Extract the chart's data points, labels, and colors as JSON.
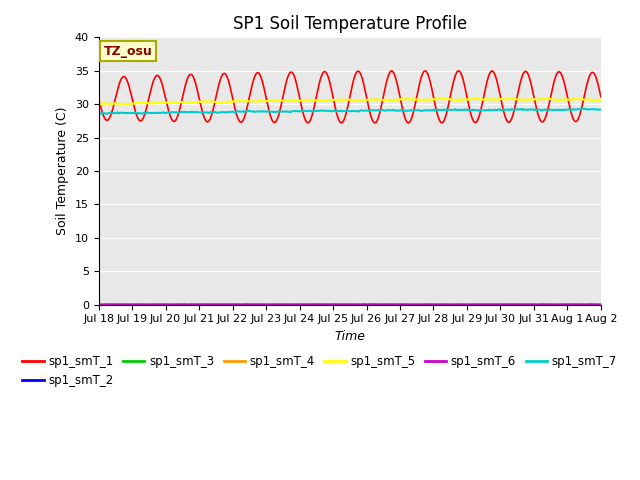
{
  "title": "SP1 Soil Temperature Profile",
  "xlabel": "Time",
  "ylabel": "Soil Temperature (C)",
  "annotation": "TZ_osu",
  "ylim": [
    0,
    40
  ],
  "yticks": [
    0,
    5,
    10,
    15,
    20,
    25,
    30,
    35,
    40
  ],
  "series": {
    "sp1_smT_1": {
      "color": "#ff0000",
      "lw": 1.2
    },
    "sp1_smT_2": {
      "color": "#0000ff",
      "lw": 1.2
    },
    "sp1_smT_3": {
      "color": "#00cc00",
      "lw": 1.2
    },
    "sp1_smT_4": {
      "color": "#ff9900",
      "lw": 1.2
    },
    "sp1_smT_5": {
      "color": "#ffff00",
      "lw": 1.5
    },
    "sp1_smT_6": {
      "color": "#cc00cc",
      "lw": 1.2
    },
    "sp1_smT_7": {
      "color": "#00cccc",
      "lw": 1.5
    }
  },
  "bg_color": "#e8e8e8",
  "title_fontsize": 12,
  "label_fontsize": 9,
  "tick_fontsize": 8,
  "legend_order": [
    "sp1_smT_1",
    "sp1_smT_2",
    "sp1_smT_3",
    "sp1_smT_4",
    "sp1_smT_5",
    "sp1_smT_6",
    "sp1_smT_7"
  ]
}
